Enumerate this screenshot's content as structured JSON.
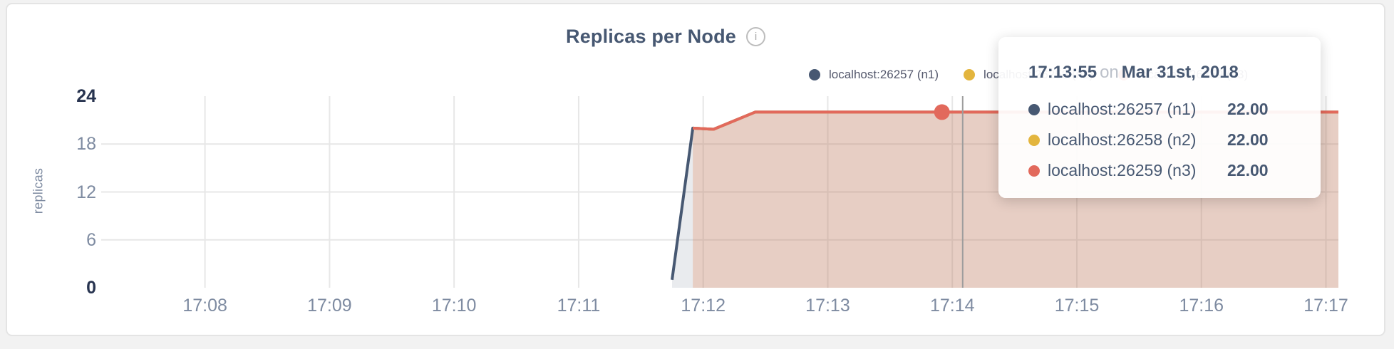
{
  "header": {
    "title": "Replicas per Node",
    "info_icon": "i"
  },
  "legend": {
    "items": [
      {
        "label": "localhost:26257 (n1)",
        "color": "#475872"
      },
      {
        "label": "localhost:26258 (n2)",
        "color": "#e3b53e"
      },
      {
        "label": "localhost:26259 (n3)",
        "color": "#e2695c"
      }
    ]
  },
  "tooltip": {
    "time": "17:13:55",
    "preposition": "on",
    "date": "Mar 31st, 2018",
    "rows": [
      {
        "name": "localhost:26257 (n1)",
        "value": "22.00",
        "color": "#475872"
      },
      {
        "name": "localhost:26258 (n2)",
        "value": "22.00",
        "color": "#e3b53e"
      },
      {
        "name": "localhost:26259 (n3)",
        "value": "22.00",
        "color": "#e2695c"
      }
    ]
  },
  "chart_data": {
    "type": "area",
    "title": "Replicas per Node",
    "ylabel": "replicas",
    "ylim": [
      0,
      24
    ],
    "grid": true,
    "legend_position": "top-right",
    "x_start": "17:07:10",
    "x_end": "17:17:06",
    "x_ticks": [
      "17:08",
      "17:09",
      "17:10",
      "17:11",
      "17:12",
      "17:13",
      "17:14",
      "17:15",
      "17:16",
      "17:17"
    ],
    "y_ticks": [
      {
        "label": "24",
        "value": 24,
        "emph": true,
        "gridline": false
      },
      {
        "label": "18",
        "value": 18,
        "emph": false,
        "gridline": true
      },
      {
        "label": "12",
        "value": 12,
        "emph": false,
        "gridline": true
      },
      {
        "label": "6",
        "value": 6,
        "emph": false,
        "gridline": true
      },
      {
        "label": "0",
        "value": 0,
        "emph": true,
        "gridline": false
      }
    ],
    "series": [
      {
        "name": "localhost:26257 (n1)",
        "color": "#475872",
        "fill": "rgba(71,88,114,0.12)",
        "points": [
          [
            "17:11:45",
            1
          ],
          [
            "17:11:55",
            20
          ],
          [
            "17:12:05",
            19.85
          ],
          [
            "17:12:25",
            22
          ],
          [
            "17:17:06",
            22
          ]
        ]
      },
      {
        "name": "localhost:26258 (n2)",
        "color": "#e3b53e",
        "fill": "rgba(227,181,62,0.10)",
        "points": [
          [
            "17:11:55",
            20
          ],
          [
            "17:12:05",
            19.85
          ],
          [
            "17:12:25",
            22
          ],
          [
            "17:17:06",
            22
          ]
        ]
      },
      {
        "name": "localhost:26259 (n3)",
        "color": "#e2695c",
        "fill": "rgba(226,105,92,0.18)",
        "points": [
          [
            "17:11:55",
            20
          ],
          [
            "17:12:05",
            19.85
          ],
          [
            "17:12:25",
            22
          ],
          [
            "17:17:06",
            22
          ]
        ]
      }
    ],
    "hover": {
      "crosshair_time": "17:14:05",
      "point_time": "17:13:55",
      "point_value": 22,
      "point_series": 2
    }
  }
}
